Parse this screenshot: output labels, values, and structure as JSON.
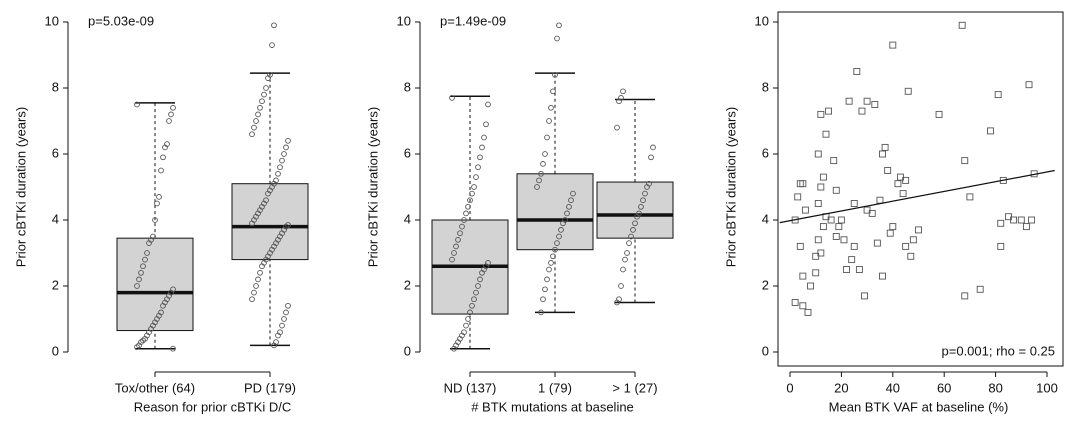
{
  "chart_data": [
    {
      "type": "box",
      "xlabel": "Reason for prior cBTKi D/C",
      "ylabel": "Prior cBTKi duration (years)",
      "annotation": "p=5.03e-09",
      "categories": [
        "Tox/other (64)",
        "PD (179)"
      ],
      "box_color": "#d3d3d3",
      "point_color": "#555555",
      "whislo": [
        0.1,
        0.2
      ],
      "q1": [
        0.65,
        2.8
      ],
      "median": [
        1.8,
        3.8
      ],
      "q3": [
        3.45,
        5.1
      ],
      "whishi": [
        7.55,
        8.45
      ],
      "points": [
        [
          7.5,
          7.4,
          7.2,
          7.0,
          6.3,
          6.2,
          5.9,
          5.5,
          4.7,
          4.5,
          4.0,
          3.5,
          3.4,
          3.3,
          3.0,
          2.8,
          2.6,
          2.4,
          2.2,
          2.0,
          1.9,
          1.8,
          1.7,
          1.6,
          1.5,
          1.4,
          1.2,
          1.1,
          1.0,
          0.9,
          0.8,
          0.7,
          0.6,
          0.5,
          0.4,
          0.35,
          0.3,
          0.2,
          0.15,
          0.1
        ],
        [
          9.9,
          9.3,
          8.4,
          8.3,
          8.0,
          7.8,
          7.6,
          7.4,
          7.2,
          7.0,
          6.8,
          6.6,
          6.4,
          6.2,
          6.0,
          5.8,
          5.6,
          5.4,
          5.2,
          5.1,
          5.0,
          4.9,
          4.8,
          4.6,
          4.5,
          4.4,
          4.3,
          4.2,
          4.1,
          4.0,
          3.9,
          3.85,
          3.8,
          3.7,
          3.6,
          3.5,
          3.4,
          3.3,
          3.2,
          3.1,
          3.0,
          2.9,
          2.8,
          2.7,
          2.6,
          2.4,
          2.2,
          2.0,
          1.8,
          1.6,
          1.4,
          1.2,
          1.0,
          0.8,
          0.6,
          0.5,
          0.3,
          0.2
        ]
      ],
      "ylim": [
        0,
        10
      ],
      "yticks": [
        0,
        2,
        4,
        6,
        8,
        10
      ]
    },
    {
      "type": "box",
      "xlabel": "# BTK mutations at baseline",
      "ylabel": "Prior cBTKi duration (years)",
      "annotation": "p=1.49e-09",
      "categories": [
        "ND (137)",
        "1 (79)",
        "> 1 (27)"
      ],
      "box_color": "#d3d3d3",
      "point_color": "#555555",
      "whislo": [
        0.1,
        1.2,
        1.5
      ],
      "q1": [
        1.15,
        3.1,
        3.45
      ],
      "median": [
        2.6,
        4.0,
        4.15
      ],
      "q3": [
        4.0,
        5.4,
        5.15
      ],
      "whishi": [
        7.75,
        8.45,
        7.65
      ],
      "points": [
        [
          7.7,
          7.5,
          6.9,
          6.5,
          6.2,
          5.9,
          5.6,
          5.3,
          5.0,
          4.8,
          4.6,
          4.4,
          4.2,
          4.0,
          3.8,
          3.6,
          3.4,
          3.2,
          3.0,
          2.8,
          2.7,
          2.6,
          2.5,
          2.4,
          2.2,
          2.0,
          1.8,
          1.6,
          1.4,
          1.2,
          1.0,
          0.8,
          0.6,
          0.5,
          0.4,
          0.3,
          0.2,
          0.1
        ],
        [
          9.9,
          9.5,
          8.4,
          7.9,
          7.4,
          7.0,
          6.5,
          6.0,
          5.7,
          5.4,
          5.2,
          5.0,
          4.8,
          4.6,
          4.4,
          4.2,
          4.0,
          3.9,
          3.7,
          3.5,
          3.3,
          3.1,
          2.9,
          2.7,
          2.5,
          2.2,
          1.9,
          1.6,
          1.2
        ],
        [
          7.9,
          7.7,
          7.6,
          6.8,
          6.2,
          5.9,
          5.1,
          5.0,
          4.8,
          4.6,
          4.4,
          4.2,
          4.1,
          3.9,
          3.7,
          3.5,
          3.3,
          3.0,
          2.8,
          2.5,
          2.0,
          1.6,
          1.5
        ]
      ],
      "ylim": [
        0,
        10
      ],
      "yticks": [
        0,
        2,
        4,
        6,
        8,
        10
      ]
    },
    {
      "type": "scatter",
      "xlabel": "Mean BTK VAF at baseline (%)",
      "ylabel": "Prior cBTKi duration (years)",
      "annotation": "p=0.001;  rho = 0.25",
      "point_color": "#555555",
      "x": [
        2,
        3,
        4,
        5,
        6,
        4,
        2,
        5,
        7,
        5,
        8,
        10,
        10,
        11,
        12,
        13,
        14,
        11,
        12,
        13,
        11,
        12,
        14,
        15,
        17,
        18,
        16,
        18,
        19,
        20,
        22,
        21,
        24,
        25,
        27,
        25,
        23,
        26,
        28,
        30,
        33,
        35,
        36,
        37,
        38,
        36,
        34,
        32,
        30,
        29,
        39,
        40,
        40,
        42,
        43,
        44,
        45,
        45,
        46,
        47,
        48,
        50,
        58,
        67,
        68,
        68,
        70,
        74,
        78,
        81,
        82,
        82,
        83,
        85,
        87,
        90,
        92,
        93,
        94,
        95
      ],
      "y": [
        4.0,
        4.7,
        5.1,
        5.1,
        4.3,
        3.2,
        1.5,
        1.4,
        1.2,
        2.3,
        2.0,
        2.4,
        2.9,
        3.4,
        3.0,
        3.8,
        4.1,
        4.5,
        5.0,
        5.3,
        6.0,
        7.2,
        6.6,
        7.3,
        5.8,
        4.9,
        4.0,
        3.5,
        3.8,
        4.0,
        2.5,
        3.4,
        2.8,
        3.2,
        2.5,
        4.5,
        7.6,
        8.5,
        7.3,
        7.6,
        7.5,
        4.6,
        6.0,
        6.2,
        5.5,
        2.3,
        3.3,
        4.2,
        4.3,
        1.7,
        3.6,
        3.8,
        9.3,
        5.1,
        5.3,
        4.8,
        5.2,
        3.2,
        7.9,
        2.9,
        3.4,
        3.7,
        7.2,
        9.9,
        5.8,
        1.7,
        4.7,
        1.9,
        6.7,
        7.8,
        3.9,
        3.2,
        5.2,
        4.1,
        4.0,
        4.0,
        3.8,
        8.1,
        4.0,
        5.4
      ],
      "fit": {
        "x": [
          -4,
          103
        ],
        "y": [
          3.92,
          5.5
        ]
      },
      "xlim": [
        0,
        100
      ],
      "xticks": [
        0,
        20,
        40,
        60,
        80,
        100
      ],
      "ylim": [
        0,
        10
      ],
      "yticks": [
        0,
        2,
        4,
        6,
        8,
        10
      ]
    }
  ]
}
